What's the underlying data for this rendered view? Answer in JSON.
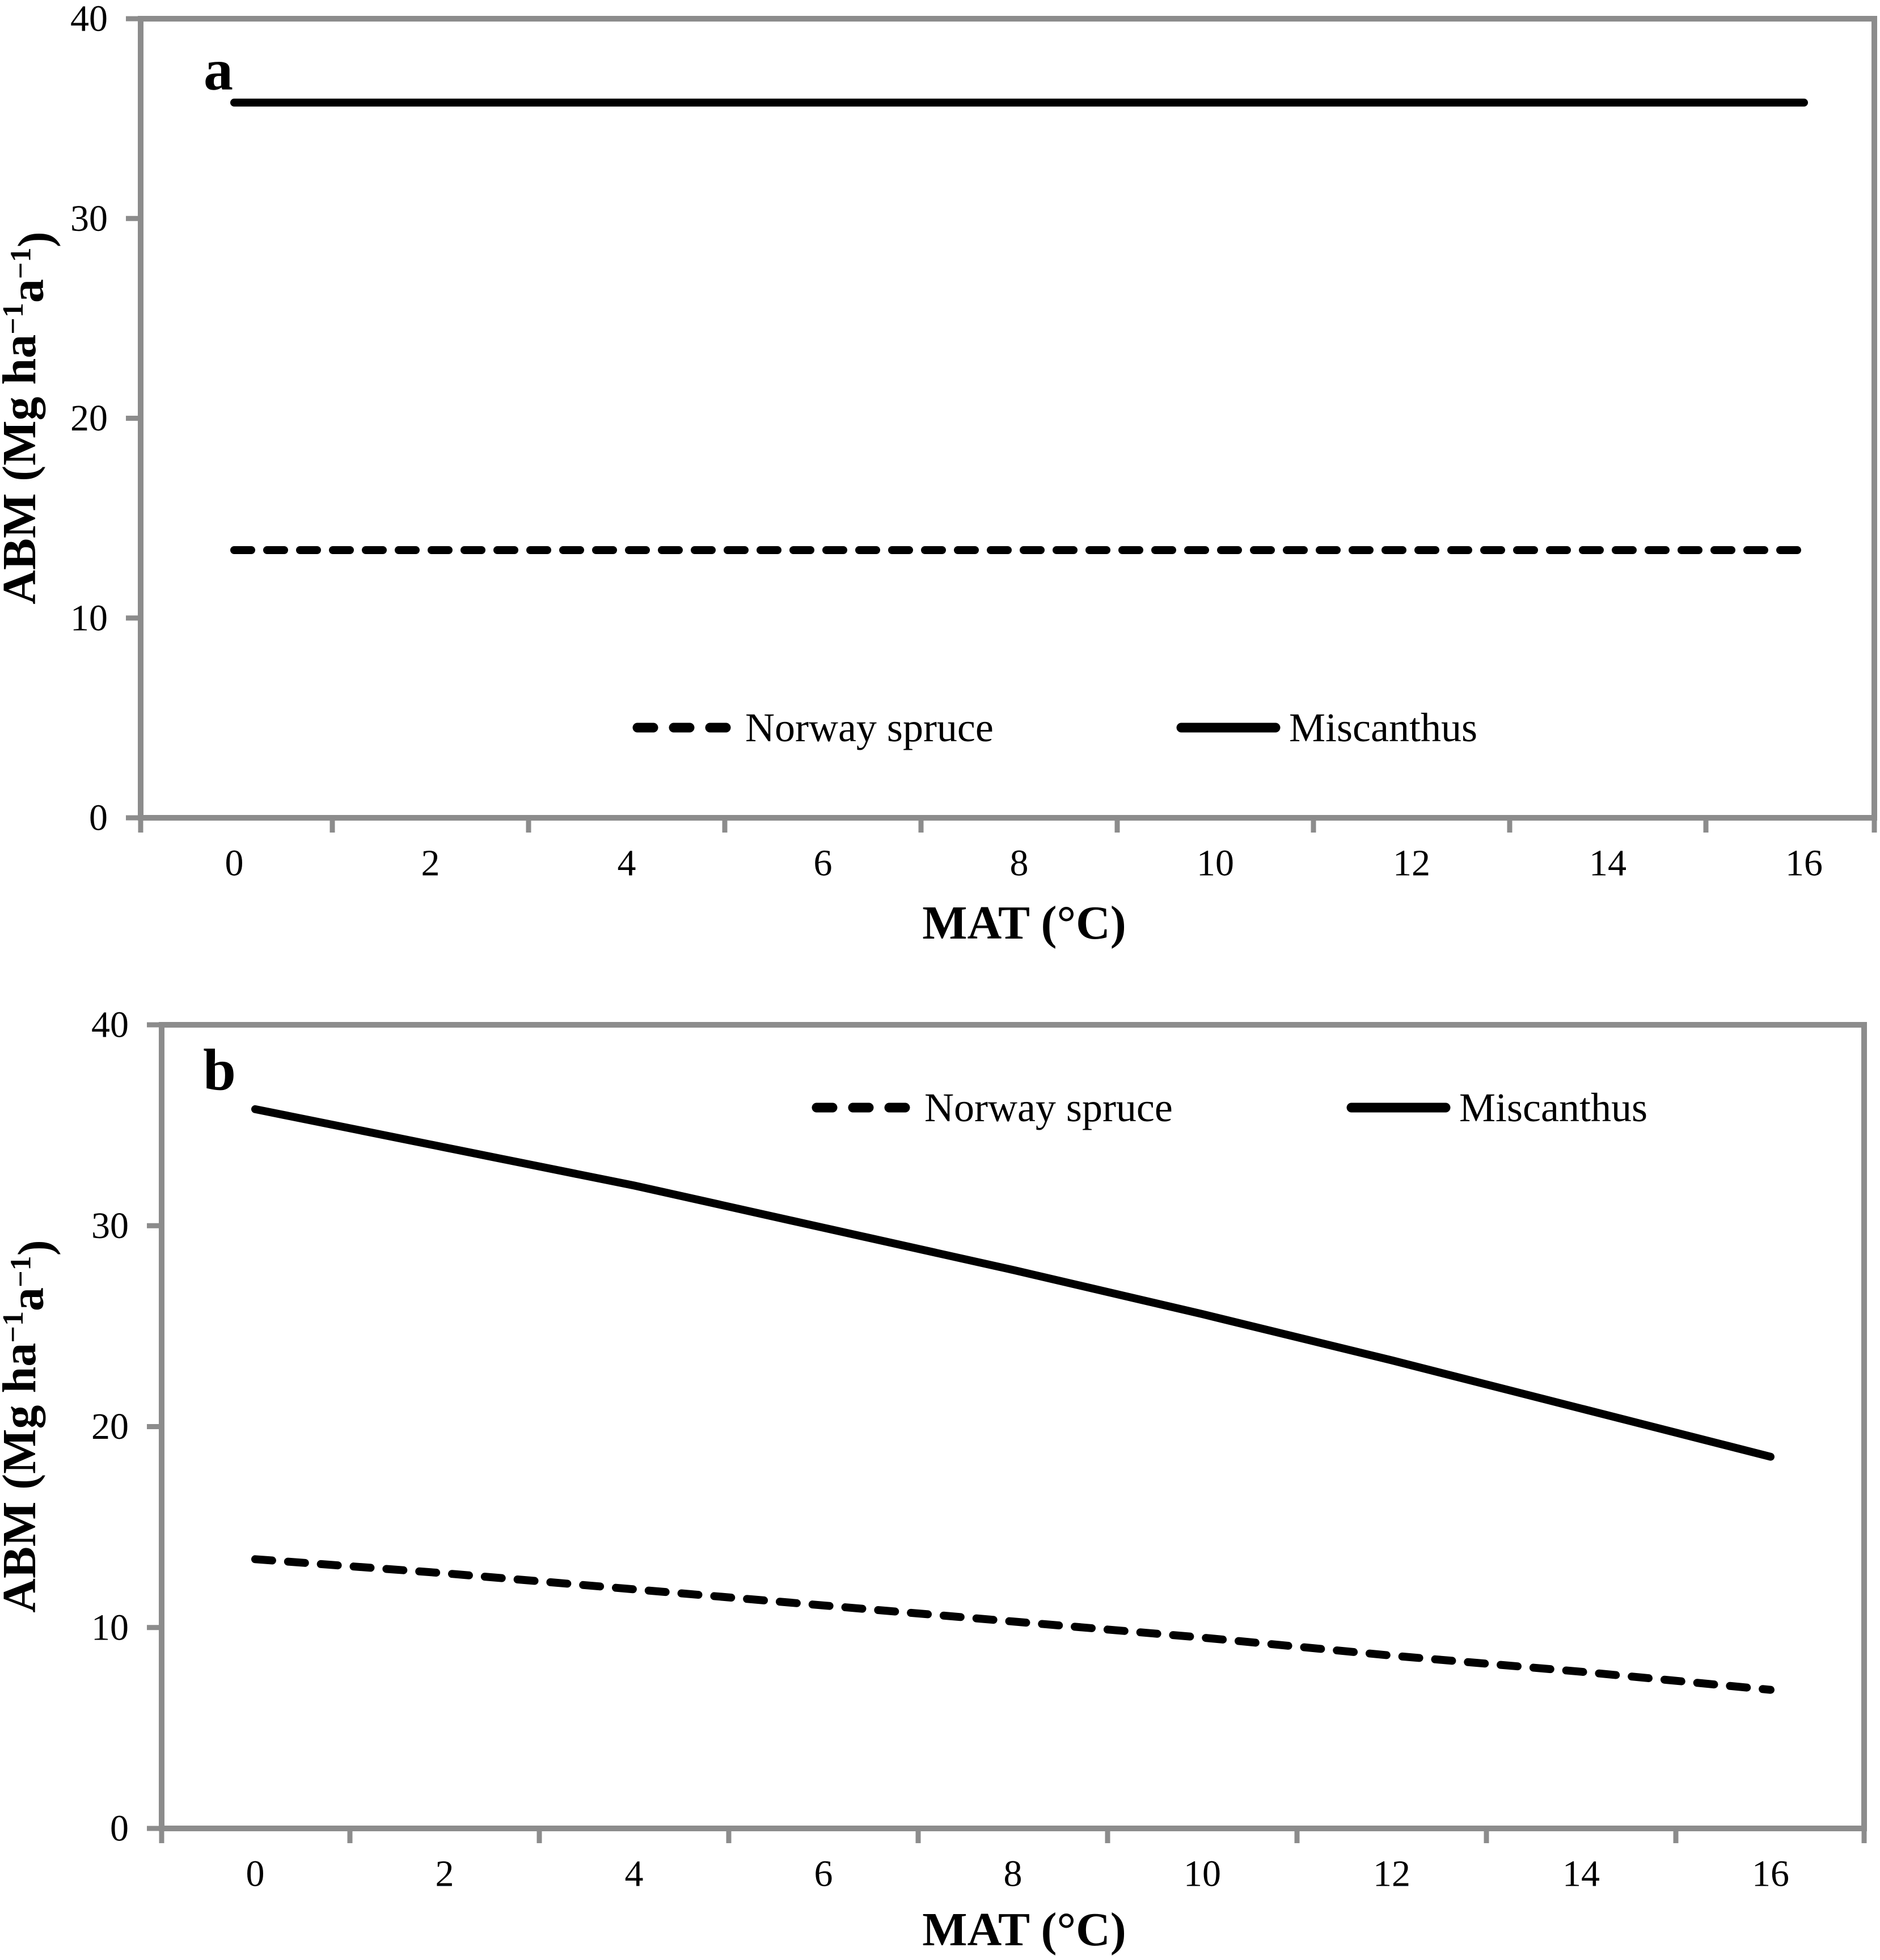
{
  "figure": {
    "panels": [
      {
        "label": "a"
      },
      {
        "label": "b"
      }
    ],
    "axis_color": "#8c8c8c",
    "line_color": "#000000",
    "background": "#ffffff"
  },
  "chart_data": [
    {
      "type": "line",
      "panel_label": "a",
      "title": "",
      "xlabel": "MAT (°C)",
      "ylabel": "ABM (Mg ha⁻¹a⁻¹)",
      "xlim": [
        -1,
        17
      ],
      "ylim": [
        0,
        40
      ],
      "x_tick_labels": [
        "0",
        "2",
        "4",
        "6",
        "8",
        "10",
        "12",
        "14",
        "16"
      ],
      "x_tick_values": [
        0,
        2,
        4,
        6,
        8,
        10,
        12,
        14,
        16
      ],
      "y_tick_labels": [
        "0",
        "10",
        "20",
        "30",
        "40"
      ],
      "y_tick_values": [
        0,
        10,
        20,
        30,
        40
      ],
      "grid": false,
      "legend_position": "inside-bottom-center",
      "legend": [
        "Norway spruce",
        "Miscanthus"
      ],
      "series": [
        {
          "name": "Norway spruce",
          "style": "dashed",
          "x": [
            0,
            16
          ],
          "values": [
            13.4,
            13.4
          ]
        },
        {
          "name": "Miscanthus",
          "style": "solid",
          "x": [
            0,
            16
          ],
          "values": [
            35.8,
            35.8
          ]
        }
      ]
    },
    {
      "type": "line",
      "panel_label": "b",
      "title": "",
      "xlabel": "MAT (°C)",
      "ylabel": "ABM (Mg ha⁻¹a⁻¹)",
      "xlim": [
        -1,
        17
      ],
      "ylim": [
        0,
        40
      ],
      "x_tick_labels": [
        "0",
        "2",
        "4",
        "6",
        "8",
        "10",
        "12",
        "14",
        "16"
      ],
      "x_tick_values": [
        0,
        2,
        4,
        6,
        8,
        10,
        12,
        14,
        16
      ],
      "y_tick_labels": [
        "0",
        "10",
        "20",
        "30",
        "40"
      ],
      "y_tick_values": [
        0,
        10,
        20,
        30,
        40
      ],
      "grid": false,
      "legend_position": "inside-top-center",
      "legend": [
        "Norway spruce",
        "Miscanthus"
      ],
      "series": [
        {
          "name": "Norway spruce",
          "style": "dashed",
          "x": [
            0,
            2,
            4,
            6,
            8,
            10,
            12,
            14,
            16
          ],
          "values": [
            13.4,
            12.7,
            11.9,
            11.1,
            10.3,
            9.5,
            8.6,
            7.8,
            6.9
          ]
        },
        {
          "name": "Miscanthus",
          "style": "solid",
          "x": [
            0,
            2,
            4,
            6,
            8,
            10,
            12,
            14,
            16
          ],
          "values": [
            35.8,
            33.9,
            32.0,
            29.9,
            27.8,
            25.6,
            23.3,
            20.9,
            18.5
          ]
        }
      ]
    }
  ]
}
